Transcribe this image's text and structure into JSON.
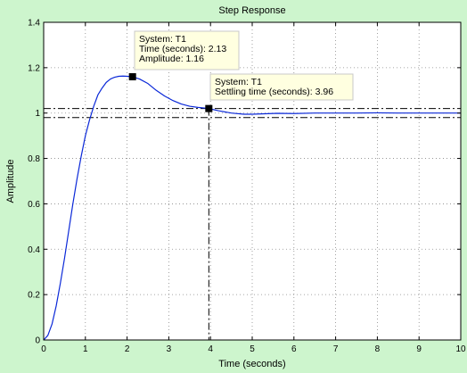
{
  "colors": {
    "figure_background": "#cdf5cd",
    "axes_background": "#ffffff",
    "axes_edge": "#000000",
    "grid": "#8a8a8a",
    "response_line": "#0a28d8",
    "settling_bounds": "#000000",
    "marker": "#000000",
    "datatip_background": "#ffffe0",
    "datatip_border": "#c8c8c8"
  },
  "chart_data": {
    "type": "line",
    "title": "Step Response",
    "xlabel": "Time (seconds)",
    "ylabel": "Amplitude",
    "xlim": [
      0,
      10
    ],
    "ylim": [
      0,
      1.4
    ],
    "grid": true,
    "grid_style": "dotted",
    "xticks": [
      "0",
      "1",
      "2",
      "3",
      "4",
      "5",
      "6",
      "7",
      "8",
      "9",
      "10"
    ],
    "yticks": [
      "0",
      "0.2",
      "0.4",
      "0.6",
      "0.8",
      "1",
      "1.2",
      "1.4"
    ],
    "series": [
      {
        "name": "T1",
        "x": [
          0,
          0.1,
          0.2,
          0.3,
          0.4,
          0.5,
          0.6,
          0.7,
          0.8,
          0.9,
          1.0,
          1.1,
          1.2,
          1.3,
          1.4,
          1.5,
          1.6,
          1.7,
          1.8,
          1.9,
          2.0,
          2.13,
          2.3,
          2.5,
          2.7,
          2.9,
          3.1,
          3.3,
          3.5,
          3.7,
          3.96,
          4.2,
          4.5,
          4.8,
          5.0,
          5.3,
          5.6,
          6.0,
          6.5,
          7.0,
          7.5,
          8.0,
          8.5,
          9.0,
          9.5,
          10.0
        ],
        "y": [
          0,
          0.02,
          0.07,
          0.15,
          0.25,
          0.36,
          0.48,
          0.6,
          0.71,
          0.81,
          0.9,
          0.97,
          1.03,
          1.08,
          1.11,
          1.135,
          1.15,
          1.158,
          1.162,
          1.163,
          1.162,
          1.16,
          1.15,
          1.13,
          1.1,
          1.075,
          1.055,
          1.04,
          1.03,
          1.025,
          1.02,
          1.01,
          1.0,
          0.995,
          0.995,
          0.997,
          0.999,
          0.998,
          1.0,
          1.0,
          1.0,
          1.001,
          1.0,
          1.0,
          1.0,
          1.0
        ]
      }
    ],
    "settling_bounds": [
      0.98,
      1.02
    ],
    "settling_time": 3.96,
    "datatips": [
      {
        "x": 2.13,
        "y": 1.16,
        "lines": [
          "System: T1",
          "Time (seconds): 2.13",
          "Amplitude: 1.16"
        ]
      },
      {
        "x": 3.96,
        "y": 1.02,
        "lines": [
          "System: T1",
          "Settling time (seconds): 3.96"
        ]
      }
    ]
  }
}
